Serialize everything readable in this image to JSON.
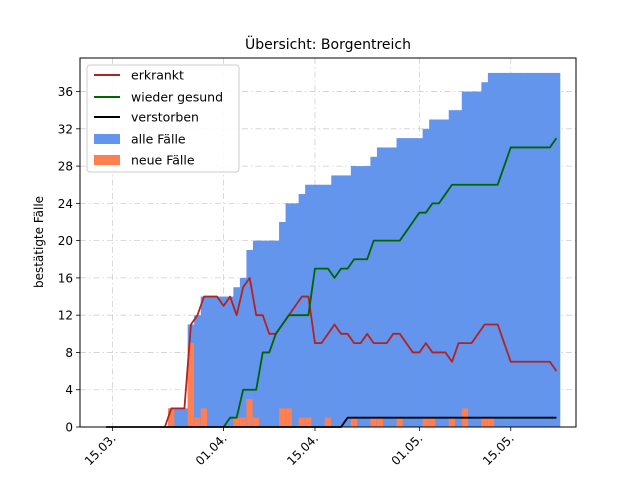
{
  "chart_data": {
    "type": "area",
    "title": "Übersicht: Borgentreich",
    "xlabel": "",
    "ylabel": "bestätigte Fälle",
    "x_axis": {
      "start": "2020-03-15",
      "end": "2020-05-23",
      "ticks": [
        "15.03.",
        "01.04.",
        "15.04.",
        "01.05.",
        "15.05."
      ],
      "tick_dates": [
        "2020-03-15",
        "2020-04-01",
        "2020-04-15",
        "2020-05-01",
        "2020-05-15"
      ]
    },
    "ylim": [
      0,
      39.6
    ],
    "yticks": [
      0,
      4,
      8,
      12,
      16,
      20,
      24,
      28,
      32,
      36
    ],
    "grid": true,
    "legend_position": "top-left",
    "legend": [
      "erkrankt",
      "wieder gesund",
      "verstorben",
      "alle Fälle",
      "neue Fälle"
    ],
    "colors": {
      "erkrankt": "#b22222",
      "wieder gesund": "#006400",
      "verstorben": "#000000",
      "alle Fälle": "#6495ed",
      "neue Fälle": "#ff7f50"
    },
    "alle_faelle": [
      [
        "2020-03-24",
        2
      ],
      [
        "2020-03-25",
        2
      ],
      [
        "2020-03-26",
        2
      ],
      [
        "2020-03-27",
        11
      ],
      [
        "2020-03-28",
        12
      ],
      [
        "2020-03-29",
        14
      ],
      [
        "2020-03-30",
        14
      ],
      [
        "2020-03-31",
        14
      ],
      [
        "2020-04-01",
        14
      ],
      [
        "2020-04-02",
        14
      ],
      [
        "2020-04-03",
        15
      ],
      [
        "2020-04-04",
        16
      ],
      [
        "2020-04-05",
        19
      ],
      [
        "2020-04-06",
        20
      ],
      [
        "2020-04-07",
        20
      ],
      [
        "2020-04-08",
        20
      ],
      [
        "2020-04-09",
        20
      ],
      [
        "2020-04-10",
        22
      ],
      [
        "2020-04-11",
        24
      ],
      [
        "2020-04-12",
        24
      ],
      [
        "2020-04-13",
        25
      ],
      [
        "2020-04-14",
        26
      ],
      [
        "2020-04-15",
        26
      ],
      [
        "2020-04-16",
        26
      ],
      [
        "2020-04-17",
        26
      ],
      [
        "2020-04-18",
        27
      ],
      [
        "2020-04-19",
        27
      ],
      [
        "2020-04-20",
        27
      ],
      [
        "2020-04-21",
        28
      ],
      [
        "2020-04-22",
        28
      ],
      [
        "2020-04-23",
        28
      ],
      [
        "2020-04-24",
        29
      ],
      [
        "2020-04-25",
        30
      ],
      [
        "2020-04-26",
        30
      ],
      [
        "2020-04-27",
        30
      ],
      [
        "2020-04-28",
        31
      ],
      [
        "2020-04-29",
        31
      ],
      [
        "2020-04-30",
        31
      ],
      [
        "2020-05-01",
        31
      ],
      [
        "2020-05-02",
        32
      ],
      [
        "2020-05-03",
        33
      ],
      [
        "2020-05-04",
        33
      ],
      [
        "2020-05-05",
        33
      ],
      [
        "2020-05-06",
        34
      ],
      [
        "2020-05-07",
        34
      ],
      [
        "2020-05-08",
        36
      ],
      [
        "2020-05-09",
        36
      ],
      [
        "2020-05-10",
        36
      ],
      [
        "2020-05-11",
        37
      ],
      [
        "2020-05-12",
        38
      ],
      [
        "2020-05-13",
        38
      ],
      [
        "2020-05-14",
        38
      ],
      [
        "2020-05-15",
        38
      ],
      [
        "2020-05-16",
        38
      ],
      [
        "2020-05-17",
        38
      ],
      [
        "2020-05-18",
        38
      ],
      [
        "2020-05-19",
        38
      ],
      [
        "2020-05-20",
        38
      ],
      [
        "2020-05-21",
        38
      ],
      [
        "2020-05-22",
        38
      ]
    ],
    "neue_faelle": [
      [
        "2020-03-24",
        2
      ],
      [
        "2020-03-27",
        9
      ],
      [
        "2020-03-28",
        1
      ],
      [
        "2020-03-29",
        2
      ],
      [
        "2020-04-03",
        1
      ],
      [
        "2020-04-04",
        1
      ],
      [
        "2020-04-05",
        3
      ],
      [
        "2020-04-06",
        1
      ],
      [
        "2020-04-10",
        2
      ],
      [
        "2020-04-11",
        2
      ],
      [
        "2020-04-13",
        1
      ],
      [
        "2020-04-14",
        1
      ],
      [
        "2020-04-17",
        1
      ],
      [
        "2020-04-21",
        1
      ],
      [
        "2020-04-24",
        1
      ],
      [
        "2020-04-25",
        1
      ],
      [
        "2020-04-28",
        1
      ],
      [
        "2020-05-02",
        1
      ],
      [
        "2020-05-03",
        1
      ],
      [
        "2020-05-06",
        1
      ],
      [
        "2020-05-08",
        2
      ],
      [
        "2020-05-11",
        1
      ],
      [
        "2020-05-12",
        1
      ]
    ],
    "series": [
      {
        "name": "erkrankt",
        "values": [
          [
            "2020-03-23",
            0
          ],
          [
            "2020-03-24",
            2
          ],
          [
            "2020-03-25",
            2
          ],
          [
            "2020-03-26",
            2
          ],
          [
            "2020-03-27",
            11
          ],
          [
            "2020-03-28",
            12
          ],
          [
            "2020-03-29",
            14
          ],
          [
            "2020-03-30",
            14
          ],
          [
            "2020-03-31",
            14
          ],
          [
            "2020-04-01",
            13
          ],
          [
            "2020-04-02",
            14
          ],
          [
            "2020-04-03",
            12
          ],
          [
            "2020-04-04",
            15
          ],
          [
            "2020-04-05",
            16
          ],
          [
            "2020-04-06",
            12
          ],
          [
            "2020-04-07",
            12
          ],
          [
            "2020-04-08",
            10
          ],
          [
            "2020-04-09",
            10
          ],
          [
            "2020-04-10",
            11
          ],
          [
            "2020-04-11",
            12
          ],
          [
            "2020-04-12",
            13
          ],
          [
            "2020-04-13",
            14
          ],
          [
            "2020-04-14",
            14
          ],
          [
            "2020-04-15",
            9
          ],
          [
            "2020-04-16",
            9
          ],
          [
            "2020-04-17",
            10
          ],
          [
            "2020-04-18",
            11
          ],
          [
            "2020-04-19",
            10
          ],
          [
            "2020-04-20",
            10
          ],
          [
            "2020-04-21",
            9
          ],
          [
            "2020-04-22",
            9
          ],
          [
            "2020-04-23",
            10
          ],
          [
            "2020-04-24",
            9
          ],
          [
            "2020-04-25",
            9
          ],
          [
            "2020-04-26",
            9
          ],
          [
            "2020-04-27",
            10
          ],
          [
            "2020-04-28",
            10
          ],
          [
            "2020-04-29",
            9
          ],
          [
            "2020-04-30",
            8
          ],
          [
            "2020-05-01",
            8
          ],
          [
            "2020-05-02",
            9
          ],
          [
            "2020-05-03",
            8
          ],
          [
            "2020-05-04",
            8
          ],
          [
            "2020-05-05",
            8
          ],
          [
            "2020-05-06",
            7
          ],
          [
            "2020-05-07",
            9
          ],
          [
            "2020-05-08",
            9
          ],
          [
            "2020-05-09",
            9
          ],
          [
            "2020-05-10",
            10
          ],
          [
            "2020-05-11",
            11
          ],
          [
            "2020-05-12",
            11
          ],
          [
            "2020-05-13",
            11
          ],
          [
            "2020-05-14",
            9
          ],
          [
            "2020-05-15",
            7
          ],
          [
            "2020-05-16",
            7
          ],
          [
            "2020-05-17",
            7
          ],
          [
            "2020-05-18",
            7
          ],
          [
            "2020-05-19",
            7
          ],
          [
            "2020-05-20",
            7
          ],
          [
            "2020-05-21",
            7
          ],
          [
            "2020-05-22",
            6
          ]
        ]
      },
      {
        "name": "wieder gesund",
        "values": [
          [
            "2020-04-01",
            0
          ],
          [
            "2020-04-02",
            1
          ],
          [
            "2020-04-03",
            1
          ],
          [
            "2020-04-04",
            4
          ],
          [
            "2020-04-05",
            4
          ],
          [
            "2020-04-06",
            4
          ],
          [
            "2020-04-07",
            8
          ],
          [
            "2020-04-08",
            8
          ],
          [
            "2020-04-09",
            10
          ],
          [
            "2020-04-10",
            11
          ],
          [
            "2020-04-11",
            12
          ],
          [
            "2020-04-12",
            12
          ],
          [
            "2020-04-13",
            12
          ],
          [
            "2020-04-14",
            12
          ],
          [
            "2020-04-15",
            17
          ],
          [
            "2020-04-16",
            17
          ],
          [
            "2020-04-17",
            17
          ],
          [
            "2020-04-18",
            16
          ],
          [
            "2020-04-19",
            17
          ],
          [
            "2020-04-20",
            17
          ],
          [
            "2020-04-21",
            18
          ],
          [
            "2020-04-22",
            18
          ],
          [
            "2020-04-23",
            18
          ],
          [
            "2020-04-24",
            20
          ],
          [
            "2020-04-25",
            20
          ],
          [
            "2020-04-26",
            20
          ],
          [
            "2020-04-27",
            20
          ],
          [
            "2020-04-28",
            20
          ],
          [
            "2020-04-29",
            21
          ],
          [
            "2020-04-30",
            22
          ],
          [
            "2020-05-01",
            23
          ],
          [
            "2020-05-02",
            23
          ],
          [
            "2020-05-03",
            24
          ],
          [
            "2020-05-04",
            24
          ],
          [
            "2020-05-05",
            25
          ],
          [
            "2020-05-06",
            26
          ],
          [
            "2020-05-07",
            26
          ],
          [
            "2020-05-08",
            26
          ],
          [
            "2020-05-09",
            26
          ],
          [
            "2020-05-10",
            26
          ],
          [
            "2020-05-11",
            26
          ],
          [
            "2020-05-12",
            26
          ],
          [
            "2020-05-13",
            26
          ],
          [
            "2020-05-14",
            28
          ],
          [
            "2020-05-15",
            30
          ],
          [
            "2020-05-16",
            30
          ],
          [
            "2020-05-17",
            30
          ],
          [
            "2020-05-18",
            30
          ],
          [
            "2020-05-19",
            30
          ],
          [
            "2020-05-20",
            30
          ],
          [
            "2020-05-21",
            30
          ],
          [
            "2020-05-22",
            31
          ]
        ]
      },
      {
        "name": "verstorben",
        "values": [
          [
            "2020-03-14",
            0
          ],
          [
            "2020-04-19",
            0
          ],
          [
            "2020-04-20",
            1
          ],
          [
            "2020-05-22",
            1
          ]
        ]
      }
    ]
  }
}
